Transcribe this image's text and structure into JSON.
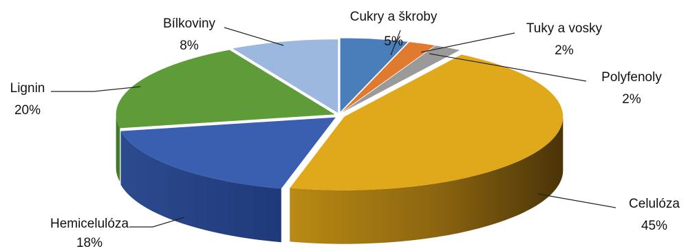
{
  "chart_data": {
    "type": "pie",
    "title": "",
    "style": "3d-exploded",
    "legend": "none",
    "start_angle_deg": 0,
    "direction": "clockwise",
    "slices": [
      {
        "label": "Cukry a škroby",
        "value": 5,
        "value_text": "5%",
        "color": "#4a7ebb"
      },
      {
        "label": "Tuky a vosky",
        "value": 2,
        "value_text": "2%",
        "color": "#e07a2e"
      },
      {
        "label": "Polyfenoly",
        "value": 2,
        "value_text": "2%",
        "color": "#9a9a9a"
      },
      {
        "label": "Celulóza",
        "value": 45,
        "value_text": "45%",
        "color": "#e0a81b"
      },
      {
        "label": "Hemicelulóza",
        "value": 18,
        "value_text": "18%",
        "color": "#3a5fb0"
      },
      {
        "label": "Lignin",
        "value": 20,
        "value_text": "20%",
        "color": "#5e9c39"
      },
      {
        "label": "Bílkoviny",
        "value": 8,
        "value_text": "8%",
        "color": "#9cb8de"
      }
    ]
  }
}
